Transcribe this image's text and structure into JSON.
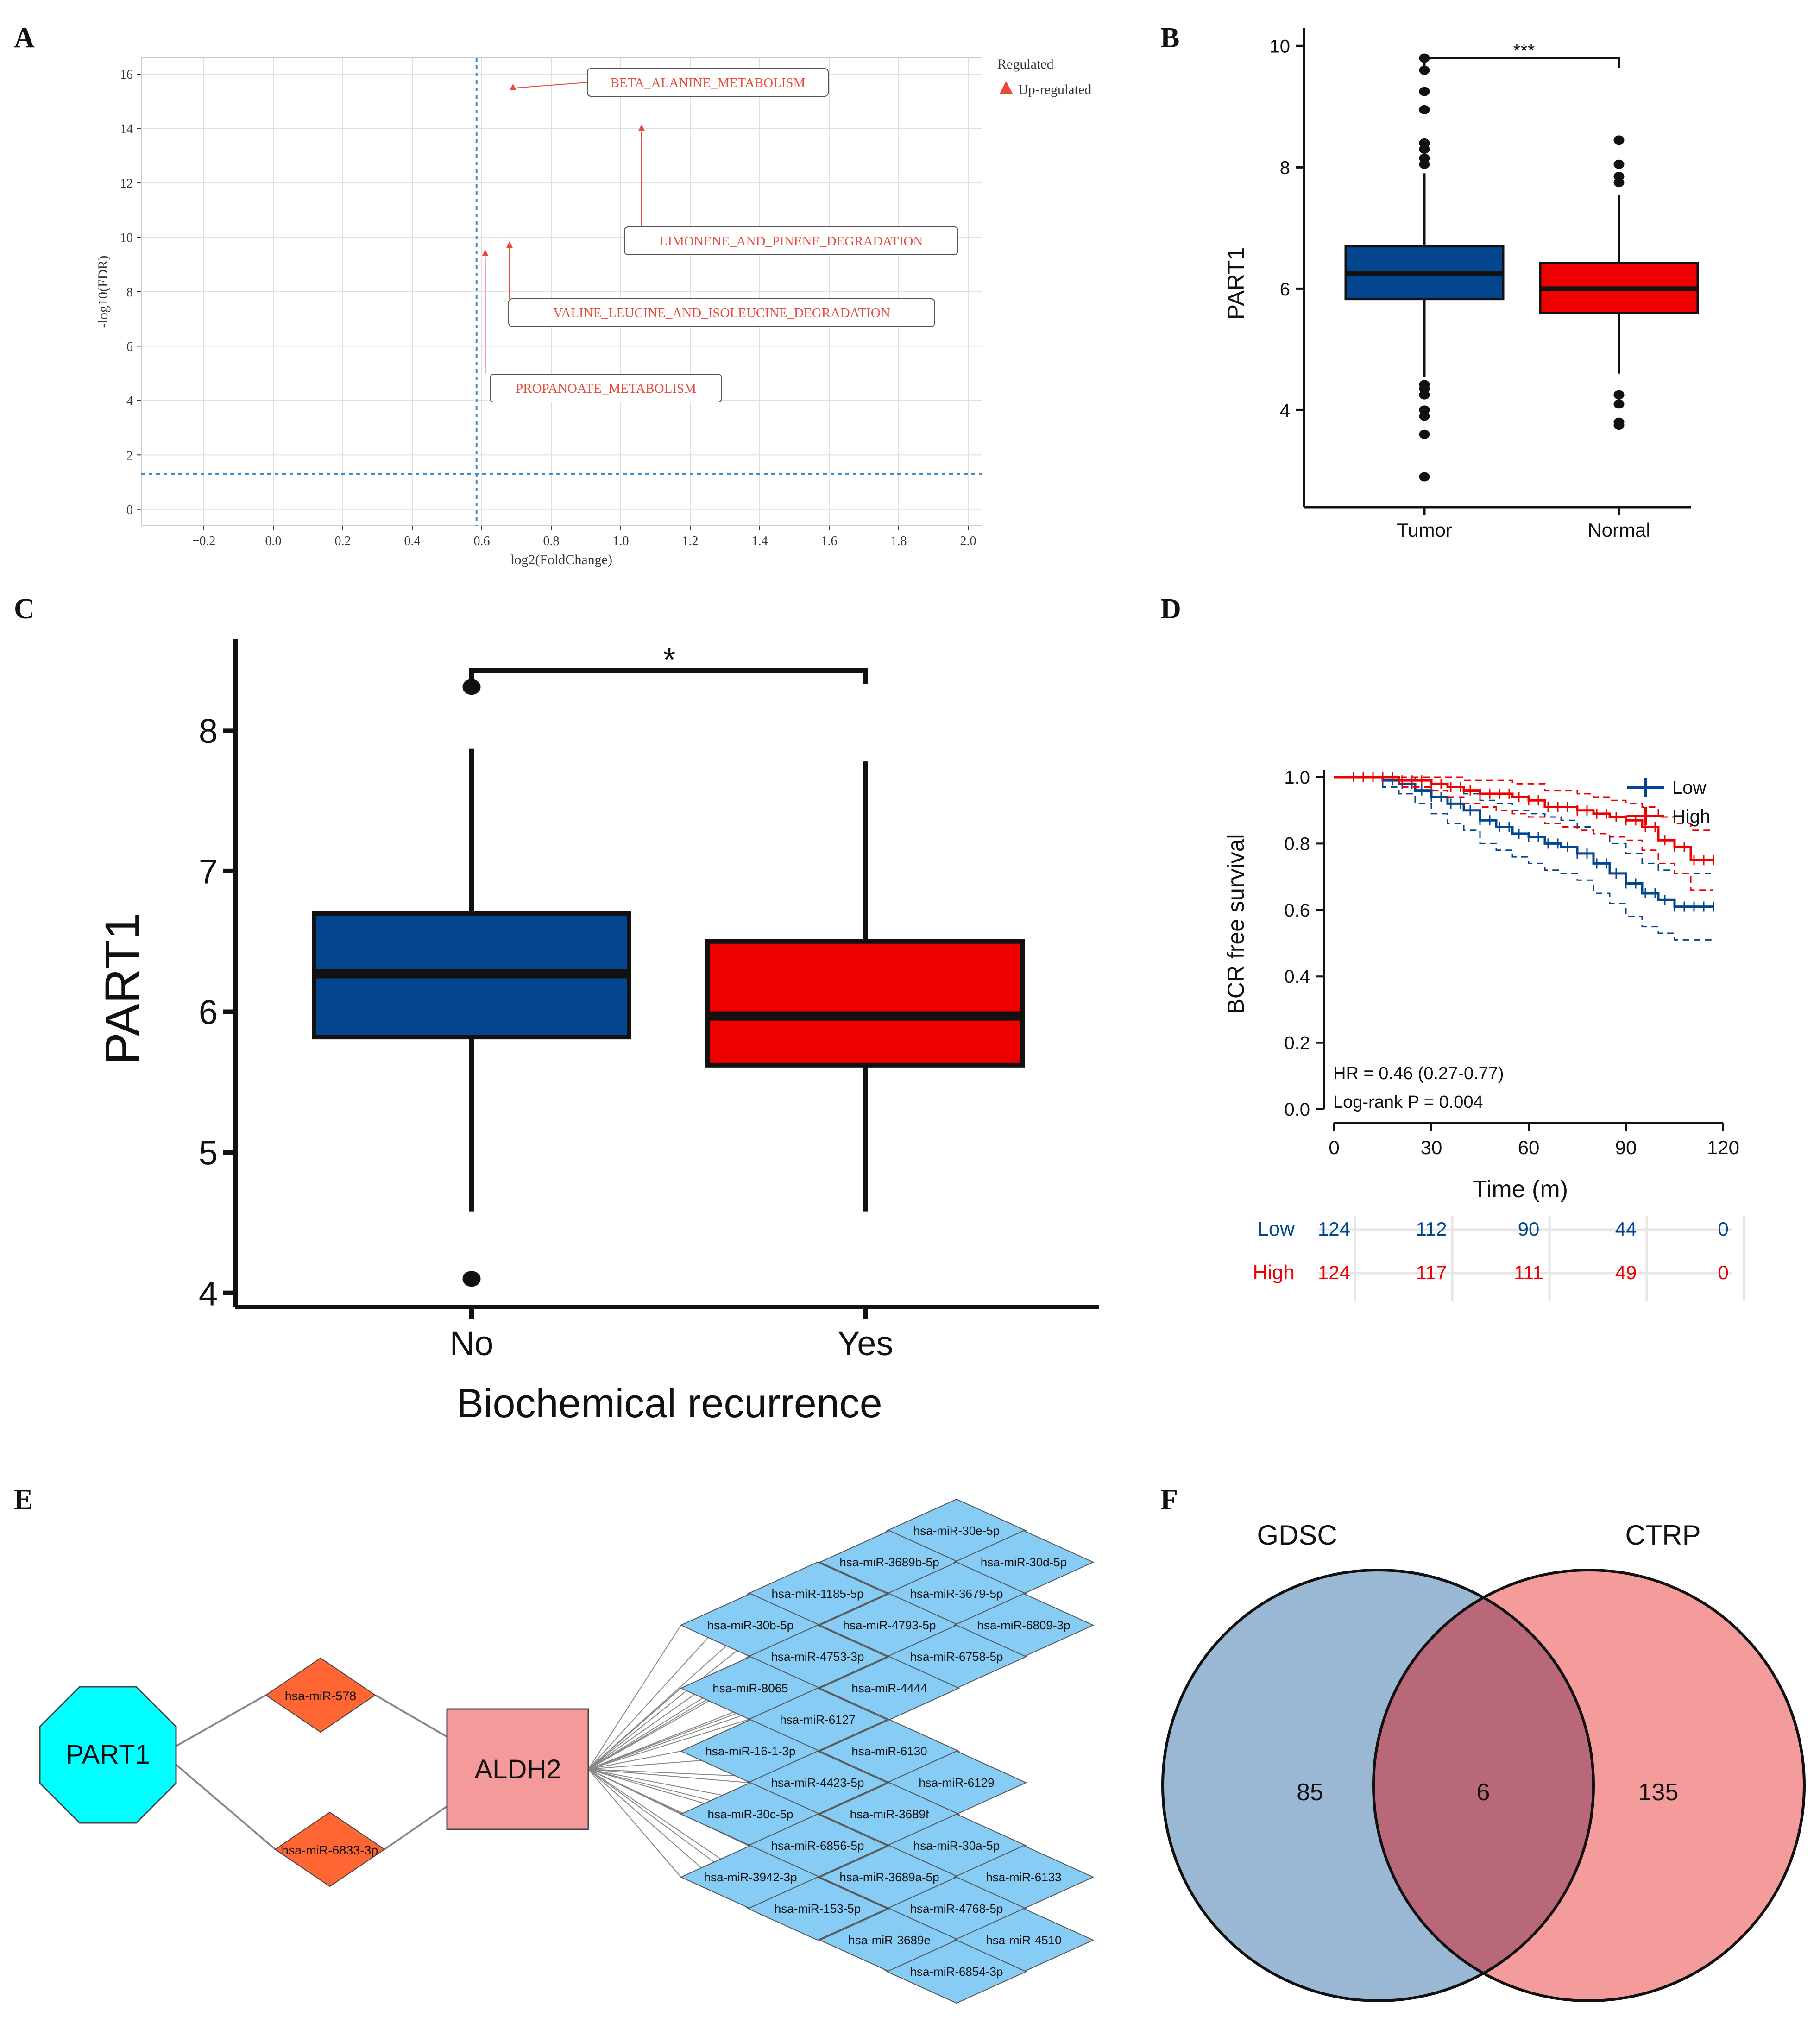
{
  "panel_letters": [
    "A",
    "B",
    "C",
    "D",
    "E",
    "F"
  ],
  "colors": {
    "blue": "#03468f",
    "red": "#ee0000",
    "cyan": "#00ffff",
    "orange": "#ff6633",
    "pink": "#f59a9a",
    "lightblue": "#87ccf5",
    "venn_blue": "#7ea4c6",
    "venn_red": "#f17f7f",
    "venn_overlap": "#b9687a",
    "enrich": "#e84a3c",
    "refline": "#3b8fd1"
  },
  "chart_data": [
    {
      "panel": "A",
      "type": "scatter",
      "xlabel": "log2(FoldChange)",
      "ylabel": "-log10(FDR)",
      "xlim": [
        -0.38,
        2.04
      ],
      "ylim": [
        -0.6,
        16.6
      ],
      "xticks": [
        "−0.2",
        "0.0",
        "0.2",
        "0.4",
        "0.6",
        "0.8",
        "1.0",
        "1.2",
        "1.4",
        "1.6",
        "1.8",
        "2.0"
      ],
      "xtick_values": [
        -0.2,
        0,
        0.2,
        0.4,
        0.6,
        0.8,
        1.0,
        1.2,
        1.4,
        1.6,
        1.8,
        2.0
      ],
      "yticks": [
        "0",
        "2",
        "4",
        "6",
        "8",
        "10",
        "12",
        "14",
        "16"
      ],
      "ytick_values": [
        0,
        2,
        4,
        6,
        8,
        10,
        12,
        14,
        16
      ],
      "vline": 0.585,
      "hline": 1.3,
      "legend_title": "Regulated",
      "legend_entry": "Up-regulated",
      "points": [
        {
          "label": "BETA_ALANINE_METABOLISM",
          "x": 0.69,
          "y": 15.5
        },
        {
          "label": "LIMONENE_AND_PINENE_DEGRADATION",
          "x": 1.06,
          "y": 14.0
        },
        {
          "label": "VALINE_LEUCINE_AND_ISOLEUCINE_DEGRADATION",
          "x": 0.68,
          "y": 9.7
        },
        {
          "label": "PROPANOATE_METABOLISM",
          "x": 0.61,
          "y": 9.4
        }
      ]
    },
    {
      "panel": "B",
      "type": "box",
      "ylabel": "PART1",
      "ylim": [
        2.4,
        10.3
      ],
      "yticks": [
        "4",
        "6",
        "8",
        "10"
      ],
      "ytick_values": [
        4,
        6,
        8,
        10
      ],
      "significance": "***",
      "groups": [
        {
          "name": "Tumor",
          "q1": 5.83,
          "median": 6.25,
          "q3": 6.7,
          "whisker_low": 4.55,
          "whisker_high": 7.9,
          "outliers": [
            9.8,
            9.6,
            9.25,
            8.95,
            8.4,
            8.3,
            8.15,
            8.05,
            4.42,
            4.35,
            4.25,
            4.0,
            3.9,
            3.6,
            2.9
          ]
        },
        {
          "name": "Normal",
          "q1": 5.6,
          "median": 6.0,
          "q3": 6.42,
          "whisker_low": 4.6,
          "whisker_high": 7.55,
          "outliers": [
            8.45,
            8.05,
            7.85,
            7.75,
            4.25,
            4.1,
            3.8,
            3.75
          ]
        }
      ]
    },
    {
      "panel": "C",
      "type": "box",
      "ylabel": "PART1",
      "xlabel": "Biochemical recurrence",
      "ylim": [
        3.9,
        8.65
      ],
      "yticks": [
        "4",
        "5",
        "6",
        "7",
        "8"
      ],
      "ytick_values": [
        4,
        5,
        6,
        7,
        8
      ],
      "significance": "*",
      "groups": [
        {
          "name": "No",
          "q1": 5.82,
          "median": 6.27,
          "q3": 6.7,
          "whisker_low": 4.58,
          "whisker_high": 7.87,
          "outliers": [
            8.31,
            4.1
          ]
        },
        {
          "name": "Yes",
          "q1": 5.62,
          "median": 5.97,
          "q3": 6.5,
          "whisker_low": 4.58,
          "whisker_high": 7.78,
          "outliers": []
        }
      ]
    },
    {
      "panel": "D",
      "type": "line",
      "ylabel": "BCR free survival",
      "xlabel": "Time (m)",
      "xlim": [
        0,
        120
      ],
      "ylim": [
        0,
        1.0
      ],
      "xticks": [
        "0",
        "30",
        "60",
        "90",
        "120"
      ],
      "xtick_values": [
        0,
        30,
        60,
        90,
        120
      ],
      "yticks": [
        "0.0",
        "0.2",
        "0.4",
        "0.6",
        "0.8",
        "1.0"
      ],
      "ytick_values": [
        0,
        0.2,
        0.4,
        0.6,
        0.8,
        1.0
      ],
      "annotation_hr": "HR = 0.46 (0.27-0.77)",
      "annotation_p": "Log-rank P = 0.004",
      "series": [
        {
          "name": "Low",
          "color": "#03468f",
          "x": [
            0,
            10,
            15,
            20,
            25,
            30,
            35,
            40,
            45,
            50,
            55,
            60,
            65,
            70,
            75,
            80,
            85,
            90,
            95,
            100,
            105,
            110,
            117
          ],
          "y": [
            1.0,
            1.0,
            0.99,
            0.98,
            0.96,
            0.94,
            0.92,
            0.9,
            0.87,
            0.85,
            0.83,
            0.82,
            0.8,
            0.79,
            0.77,
            0.74,
            0.71,
            0.68,
            0.65,
            0.63,
            0.61,
            0.61,
            0.61
          ],
          "upper": [
            1.0,
            1.0,
            1.0,
            1.0,
            0.99,
            0.98,
            0.97,
            0.95,
            0.93,
            0.92,
            0.9,
            0.89,
            0.88,
            0.87,
            0.85,
            0.83,
            0.8,
            0.77,
            0.74,
            0.72,
            0.71,
            0.71,
            0.71
          ],
          "lower": [
            1.0,
            1.0,
            0.97,
            0.95,
            0.92,
            0.89,
            0.86,
            0.84,
            0.8,
            0.78,
            0.76,
            0.74,
            0.72,
            0.71,
            0.69,
            0.65,
            0.62,
            0.58,
            0.55,
            0.53,
            0.51,
            0.51,
            0.51
          ]
        },
        {
          "name": "High",
          "color": "#ee0000",
          "x": [
            0,
            10,
            20,
            30,
            35,
            40,
            45,
            50,
            55,
            60,
            65,
            70,
            75,
            80,
            85,
            90,
            95,
            100,
            105,
            110,
            117
          ],
          "y": [
            1.0,
            1.0,
            0.99,
            0.98,
            0.97,
            0.96,
            0.95,
            0.95,
            0.94,
            0.93,
            0.91,
            0.91,
            0.9,
            0.89,
            0.88,
            0.87,
            0.85,
            0.81,
            0.79,
            0.75,
            0.75
          ],
          "upper": [
            1.0,
            1.0,
            1.0,
            1.0,
            1.0,
            0.99,
            0.99,
            0.99,
            0.98,
            0.98,
            0.96,
            0.96,
            0.95,
            0.94,
            0.93,
            0.92,
            0.91,
            0.88,
            0.86,
            0.84,
            0.84
          ],
          "lower": [
            1.0,
            1.0,
            0.97,
            0.96,
            0.94,
            0.92,
            0.91,
            0.9,
            0.89,
            0.88,
            0.86,
            0.85,
            0.84,
            0.83,
            0.82,
            0.81,
            0.78,
            0.74,
            0.71,
            0.66,
            0.66
          ]
        }
      ],
      "risk_table": {
        "times": [
          0,
          30,
          60,
          90,
          120
        ],
        "rows": [
          {
            "name": "Low",
            "values": [
              "124",
              "112",
              "90",
              "44",
              "0"
            ]
          },
          {
            "name": "High",
            "values": [
              "124",
              "117",
              "111",
              "49",
              "0"
            ]
          }
        ]
      }
    }
  ],
  "network": {
    "source": "PART1",
    "mirna_up": "hsa-miR-578",
    "mirna_down": "hsa-miR-6833-3p",
    "target": "ALDH2",
    "mirnas": [
      "hsa-miR-30e-5p",
      "hsa-miR-3689b-5p",
      "hsa-miR-30d-5p",
      "hsa-miR-1185-5p",
      "hsa-miR-3679-5p",
      "hsa-miR-30b-5p",
      "hsa-miR-4793-5p",
      "hsa-miR-6809-3p",
      "hsa-miR-4753-3p",
      "hsa-miR-6758-5p",
      "hsa-miR-8065",
      "hsa-miR-4444",
      "hsa-miR-6127",
      "hsa-miR-16-1-3p",
      "hsa-miR-6130",
      "hsa-miR-4423-5p",
      "hsa-miR-6129",
      "hsa-miR-30c-5p",
      "hsa-miR-3689f",
      "hsa-miR-6856-5p",
      "hsa-miR-30a-5p",
      "hsa-miR-3942-3p",
      "hsa-miR-3689a-5p",
      "hsa-miR-6133",
      "hsa-miR-153-5p",
      "hsa-miR-4768-5p",
      "hsa-miR-3689e",
      "hsa-miR-4510",
      "hsa-miR-6854-3p"
    ]
  },
  "venn": {
    "left_label": "GDSC",
    "right_label": "CTRP",
    "left_only": "85",
    "both": "6",
    "right_only": "135"
  }
}
